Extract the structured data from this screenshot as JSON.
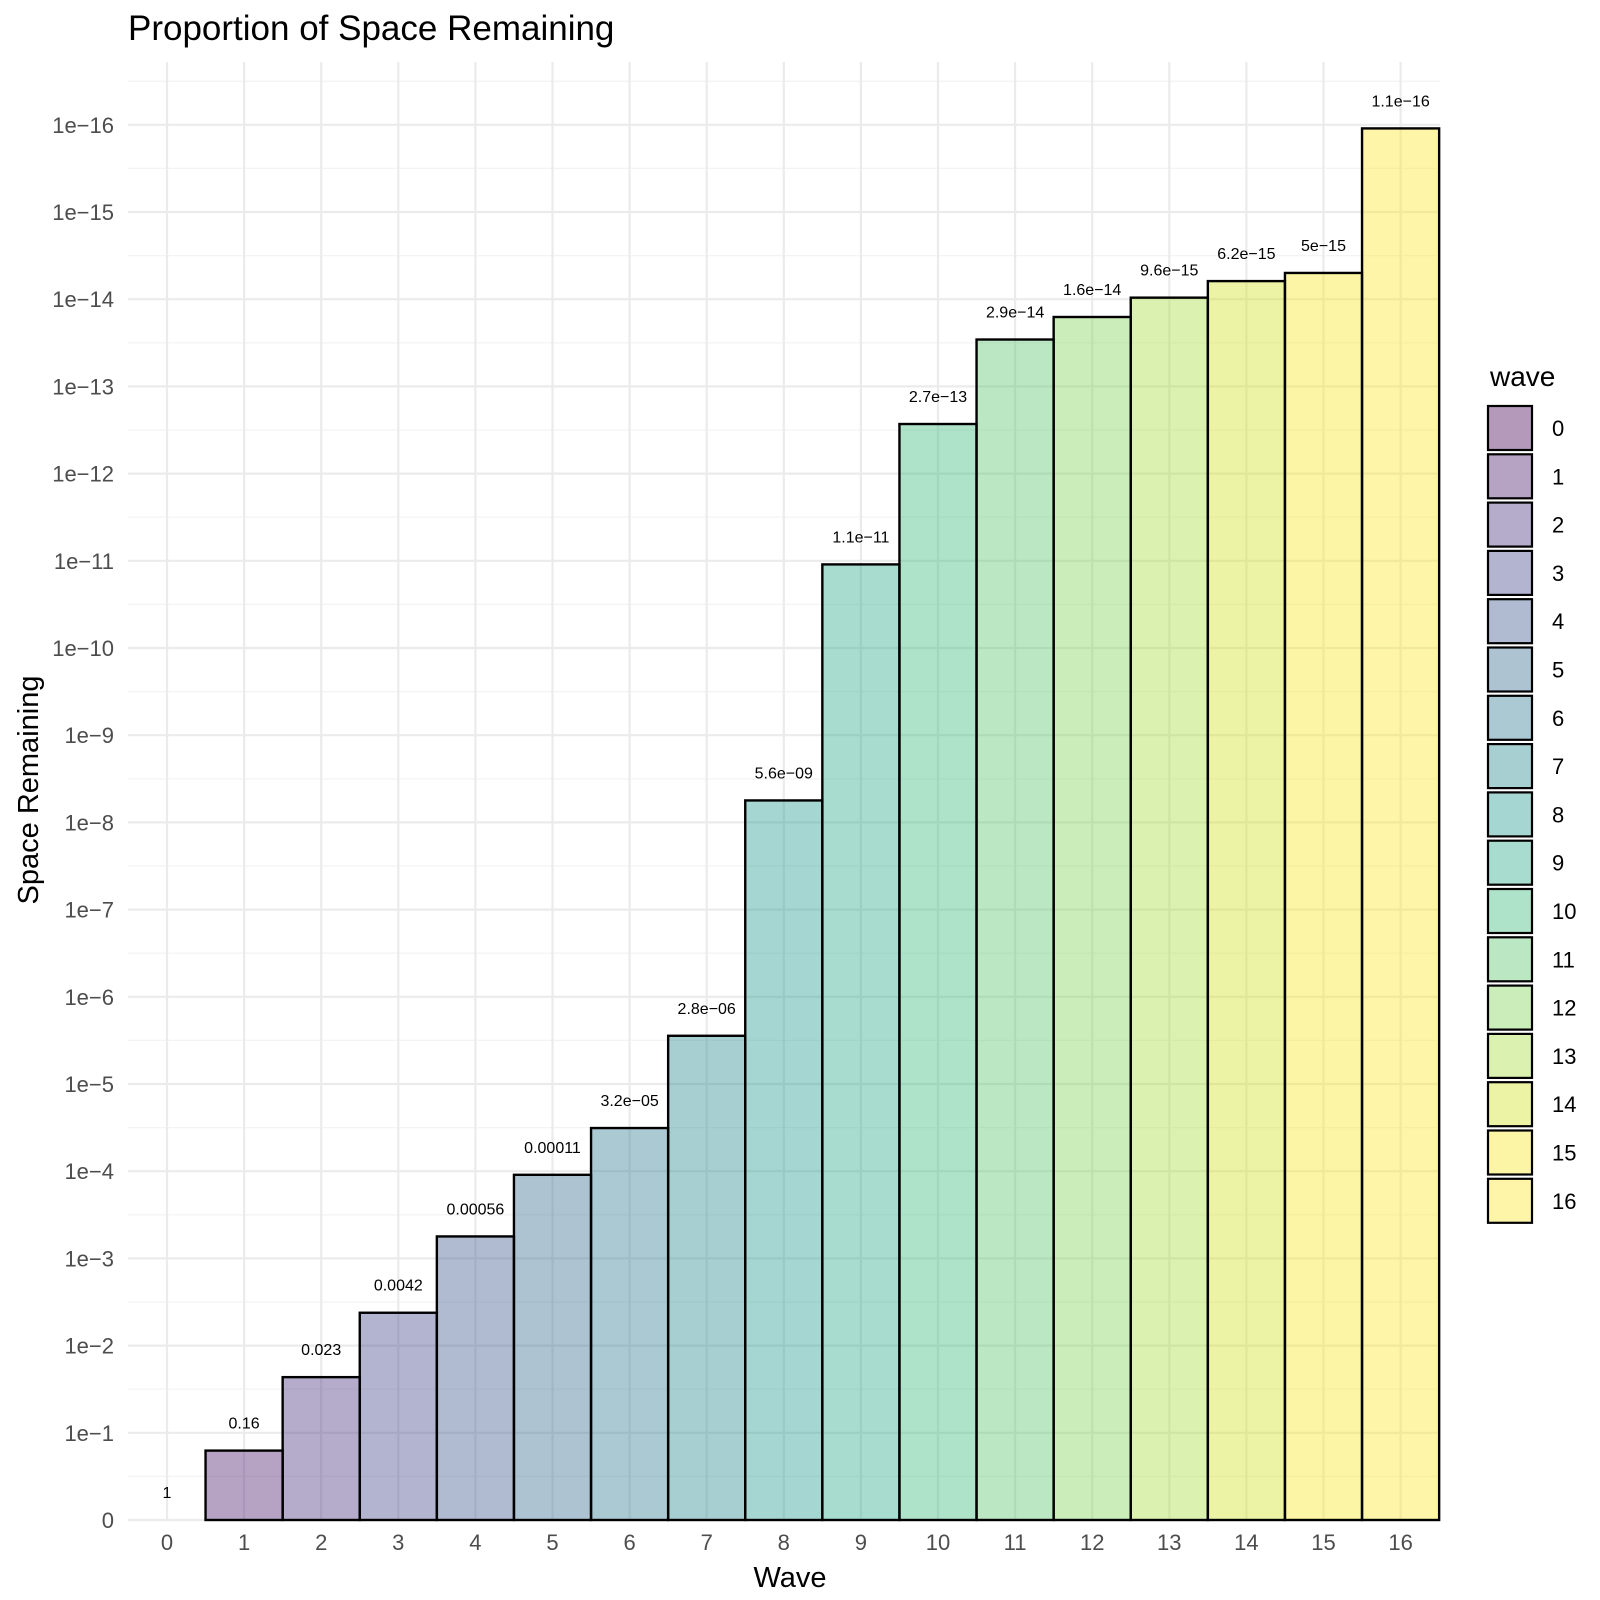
{
  "chart_data": {
    "type": "bar",
    "title": "Proportion of Space Remaining",
    "xlabel": "Wave",
    "ylabel": "Space Remaining",
    "categories": [
      "0",
      "1",
      "2",
      "3",
      "4",
      "5",
      "6",
      "7",
      "8",
      "9",
      "10",
      "11",
      "12",
      "13",
      "14",
      "15",
      "16"
    ],
    "values": [
      1,
      0.16,
      0.023,
      0.0042,
      0.00056,
      0.00011,
      3.2e-05,
      2.8e-06,
      5.6e-09,
      1.1e-11,
      2.7e-13,
      2.9e-14,
      1.6e-14,
      9.6e-15,
      6.2e-15,
      5e-15,
      1.1e-16
    ],
    "data_labels": [
      "1",
      "0.16",
      "0.023",
      "0.0042",
      "0.00056",
      "0.00011",
      "3.2e−05",
      "2.8e−06",
      "5.6e−09",
      "1.1e−11",
      "2.7e−13",
      "2.9e−14",
      "1.6e−14",
      "9.6e−15",
      "6.2e−15",
      "5e−15",
      "1.1e−16"
    ],
    "y_scale": "reversed -log10 (0 at bottom, 1e-16 at top)",
    "y_ticks": [
      "0",
      "1e−1",
      "1e−2",
      "1e−3",
      "1e−4",
      "1e−5",
      "1e−6",
      "1e−7",
      "1e−8",
      "1e−9",
      "1e−10",
      "1e−11",
      "1e−12",
      "1e−13",
      "1e−14",
      "1e−15",
      "1e−16"
    ],
    "y_tick_exponents": [
      0,
      1,
      2,
      3,
      4,
      5,
      6,
      7,
      8,
      9,
      10,
      11,
      12,
      13,
      14,
      15,
      16
    ],
    "grid": true,
    "legend": {
      "title": "wave",
      "position": "right",
      "entries": [
        "0",
        "1",
        "2",
        "3",
        "4",
        "5",
        "6",
        "7",
        "8",
        "9",
        "10",
        "11",
        "12",
        "13",
        "14",
        "15",
        "16"
      ]
    },
    "colors": [
      "#440154",
      "#481A6C",
      "#472F7D",
      "#414487",
      "#39568C",
      "#31688E",
      "#2A788E",
      "#23888E",
      "#1F988B",
      "#22A884",
      "#35B779",
      "#54C568",
      "#7AD151",
      "#A5DB36",
      "#D2E21B",
      "#F4E61E",
      "#FDE725"
    ]
  }
}
